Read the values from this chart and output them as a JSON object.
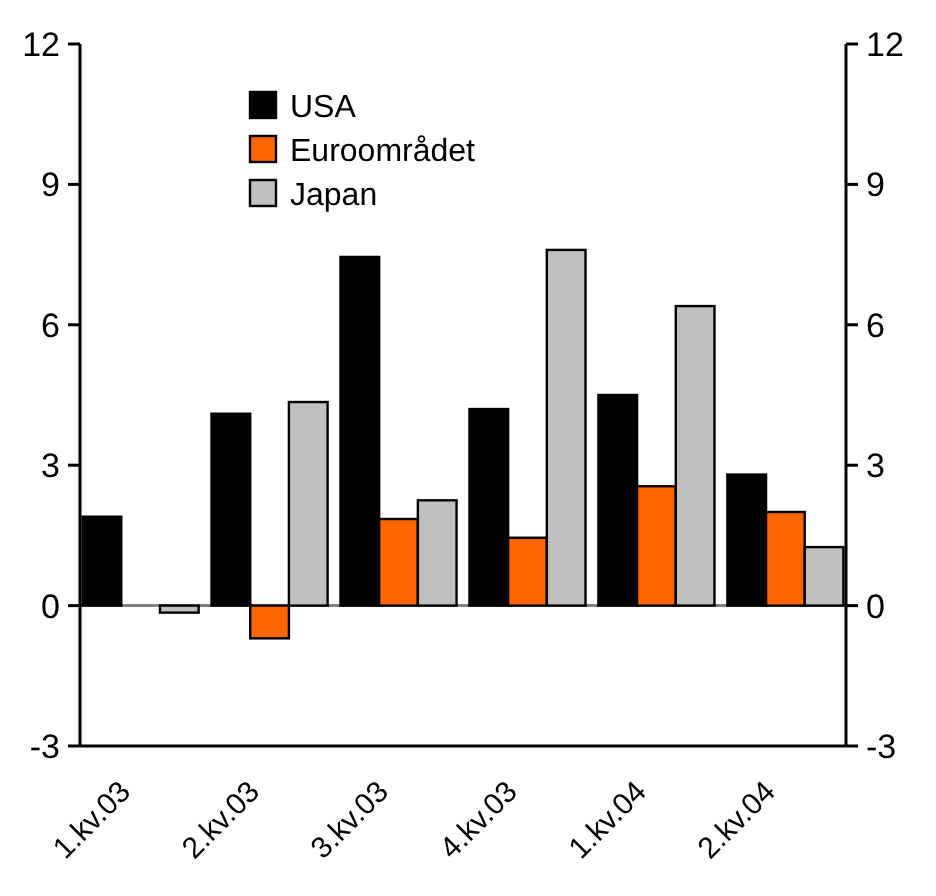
{
  "chart_data": {
    "type": "bar",
    "categories": [
      "1.kv.03",
      "2.kv.03",
      "3.kv.03",
      "4.kv.03",
      "1.kv.04",
      "2.kv.04"
    ],
    "series": [
      {
        "name": "USA",
        "color": "#000000",
        "values": [
          1.9,
          4.1,
          7.45,
          4.2,
          4.5,
          2.8
        ]
      },
      {
        "name": "Euroområdet",
        "color": "#ff6600",
        "values": [
          null,
          -0.7,
          1.85,
          1.45,
          2.55,
          2.0
        ]
      },
      {
        "name": "Japan",
        "color": "#c0c0c0",
        "values": [
          -0.15,
          4.35,
          2.25,
          7.6,
          6.4,
          1.25
        ]
      }
    ],
    "ylim": [
      -3,
      12
    ],
    "yticks": [
      -3,
      0,
      3,
      6,
      9,
      12
    ],
    "y2lim": [
      -3,
      12
    ],
    "y2ticks": [
      -3,
      0,
      3,
      6,
      9,
      12
    ],
    "legend": "top left",
    "ref_lines": [
      {
        "axis": "y",
        "value": 0,
        "color": "#808080"
      }
    ]
  }
}
